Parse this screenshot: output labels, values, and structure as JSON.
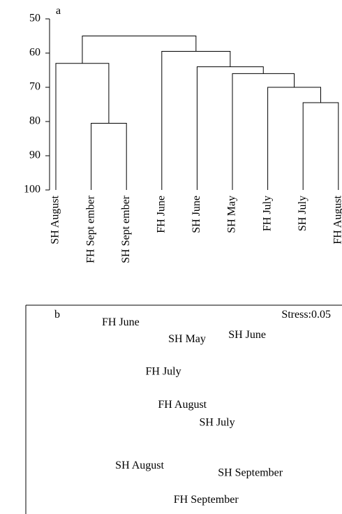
{
  "chart_data": [
    {
      "type": "dendrogram",
      "panel_label": "a",
      "ylim": [
        100,
        50
      ],
      "yticks": [
        50,
        60,
        70,
        80,
        90,
        100
      ],
      "tree": {
        "height": 55,
        "children": [
          {
            "height": 63,
            "children": [
              {
                "label": "SH August"
              },
              {
                "height": 80.5,
                "children": [
                  {
                    "label": "FH Sept ember"
                  },
                  {
                    "label": "SH Sept ember"
                  }
                ]
              }
            ]
          },
          {
            "height": 59.5,
            "children": [
              {
                "label": "FH June"
              },
              {
                "height": 64,
                "children": [
                  {
                    "label": "SH June"
                  },
                  {
                    "height": 66,
                    "children": [
                      {
                        "label": "SH May"
                      },
                      {
                        "height": 70,
                        "children": [
                          {
                            "label": "FH July"
                          },
                          {
                            "height": 74.5,
                            "children": [
                              {
                                "label": "SH July"
                              },
                              {
                                "label": "FH August"
                              }
                            ]
                          }
                        ]
                      }
                    ]
                  }
                ]
              }
            ]
          }
        ]
      }
    },
    {
      "type": "scatter",
      "panel_label": "b",
      "annotation": "Stress:0.05",
      "xlim": [
        -1,
        1
      ],
      "ylim": [
        -1,
        1
      ],
      "labels": [
        "FH June",
        "SH May",
        "SH June",
        "FH July",
        "FH August",
        "SH July",
        "SH August",
        "SH September",
        "FH September"
      ],
      "x": [
        -0.4,
        0.02,
        0.4,
        -0.13,
        -0.01,
        0.21,
        -0.28,
        0.42,
        0.14
      ],
      "values": [
        0.83,
        0.67,
        0.71,
        0.36,
        0.04,
        -0.13,
        -0.54,
        -0.61,
        -0.87
      ]
    }
  ]
}
